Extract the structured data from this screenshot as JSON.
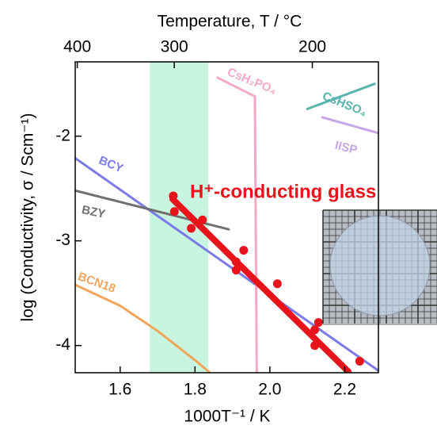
{
  "chart_data": {
    "type": "scatter",
    "title": "Temperature, T / °C",
    "x_label": "1000T⁻¹ / K",
    "y_label": "log (Conductivity, σ / Scm⁻¹)",
    "xlim": [
      1.48,
      2.29
    ],
    "ylim": [
      -4.26,
      -1.29
    ],
    "xticks": [
      1.6,
      1.8,
      {
        "value": 2.0,
        "label": "2.0"
      },
      2.2
    ],
    "yticks": [
      -2,
      -3,
      -4
    ],
    "x2ticks": [
      400,
      300,
      200
    ],
    "shaded_region": [
      1.679,
      1.836
    ],
    "shade_color": "#c8f5e0",
    "series": [
      {
        "name": "BCY",
        "kind": "line",
        "color": "#7b7be8",
        "x": [
          1.48,
          2.29
        ],
        "values": [
          -2.21,
          -4.24
        ]
      },
      {
        "name": "BZY",
        "kind": "line",
        "color": "#707070",
        "x": [
          1.48,
          1.89
        ],
        "values": [
          -2.52,
          -2.89
        ]
      },
      {
        "name": "BCN18",
        "kind": "line",
        "color": "#f2a55a",
        "x": [
          1.48,
          1.6,
          1.7,
          1.8,
          1.84
        ],
        "values": [
          -3.42,
          -3.62,
          -3.86,
          -4.14,
          -4.26
        ]
      },
      {
        "name": "CsH₂PO₄",
        "kind": "line",
        "color": "#f4a8c8",
        "x": [
          1.86,
          1.96,
          1.965
        ],
        "values": [
          -1.44,
          -1.62,
          -4.26
        ]
      },
      {
        "name": "CsHSO₄",
        "kind": "line",
        "color": "#58b4ac",
        "x": [
          2.1,
          2.28
        ],
        "values": [
          -1.74,
          -1.5
        ]
      },
      {
        "name": "IISP",
        "kind": "line",
        "color": "#c6a6e6",
        "x": [
          2.14,
          2.29
        ],
        "values": [
          -1.82,
          -1.97
        ]
      },
      {
        "name": "H⁺-conducting glass",
        "kind": "scatter",
        "color": "#e8141c",
        "x": [
          1.742,
          1.745,
          1.79,
          1.82,
          1.91,
          1.91,
          1.93,
          2.02,
          2.12,
          2.12,
          2.13,
          2.24
        ],
        "values": [
          -2.57,
          -2.72,
          -2.88,
          -2.8,
          -3.2,
          -3.28,
          -3.09,
          -3.41,
          -3.85,
          -4.0,
          -3.78,
          -4.15
        ]
      },
      {
        "kind": "fit",
        "color": "#e8141c",
        "x": [
          1.74,
          2.21
        ],
        "values": [
          -2.6,
          -4.25
        ]
      }
    ]
  }
}
